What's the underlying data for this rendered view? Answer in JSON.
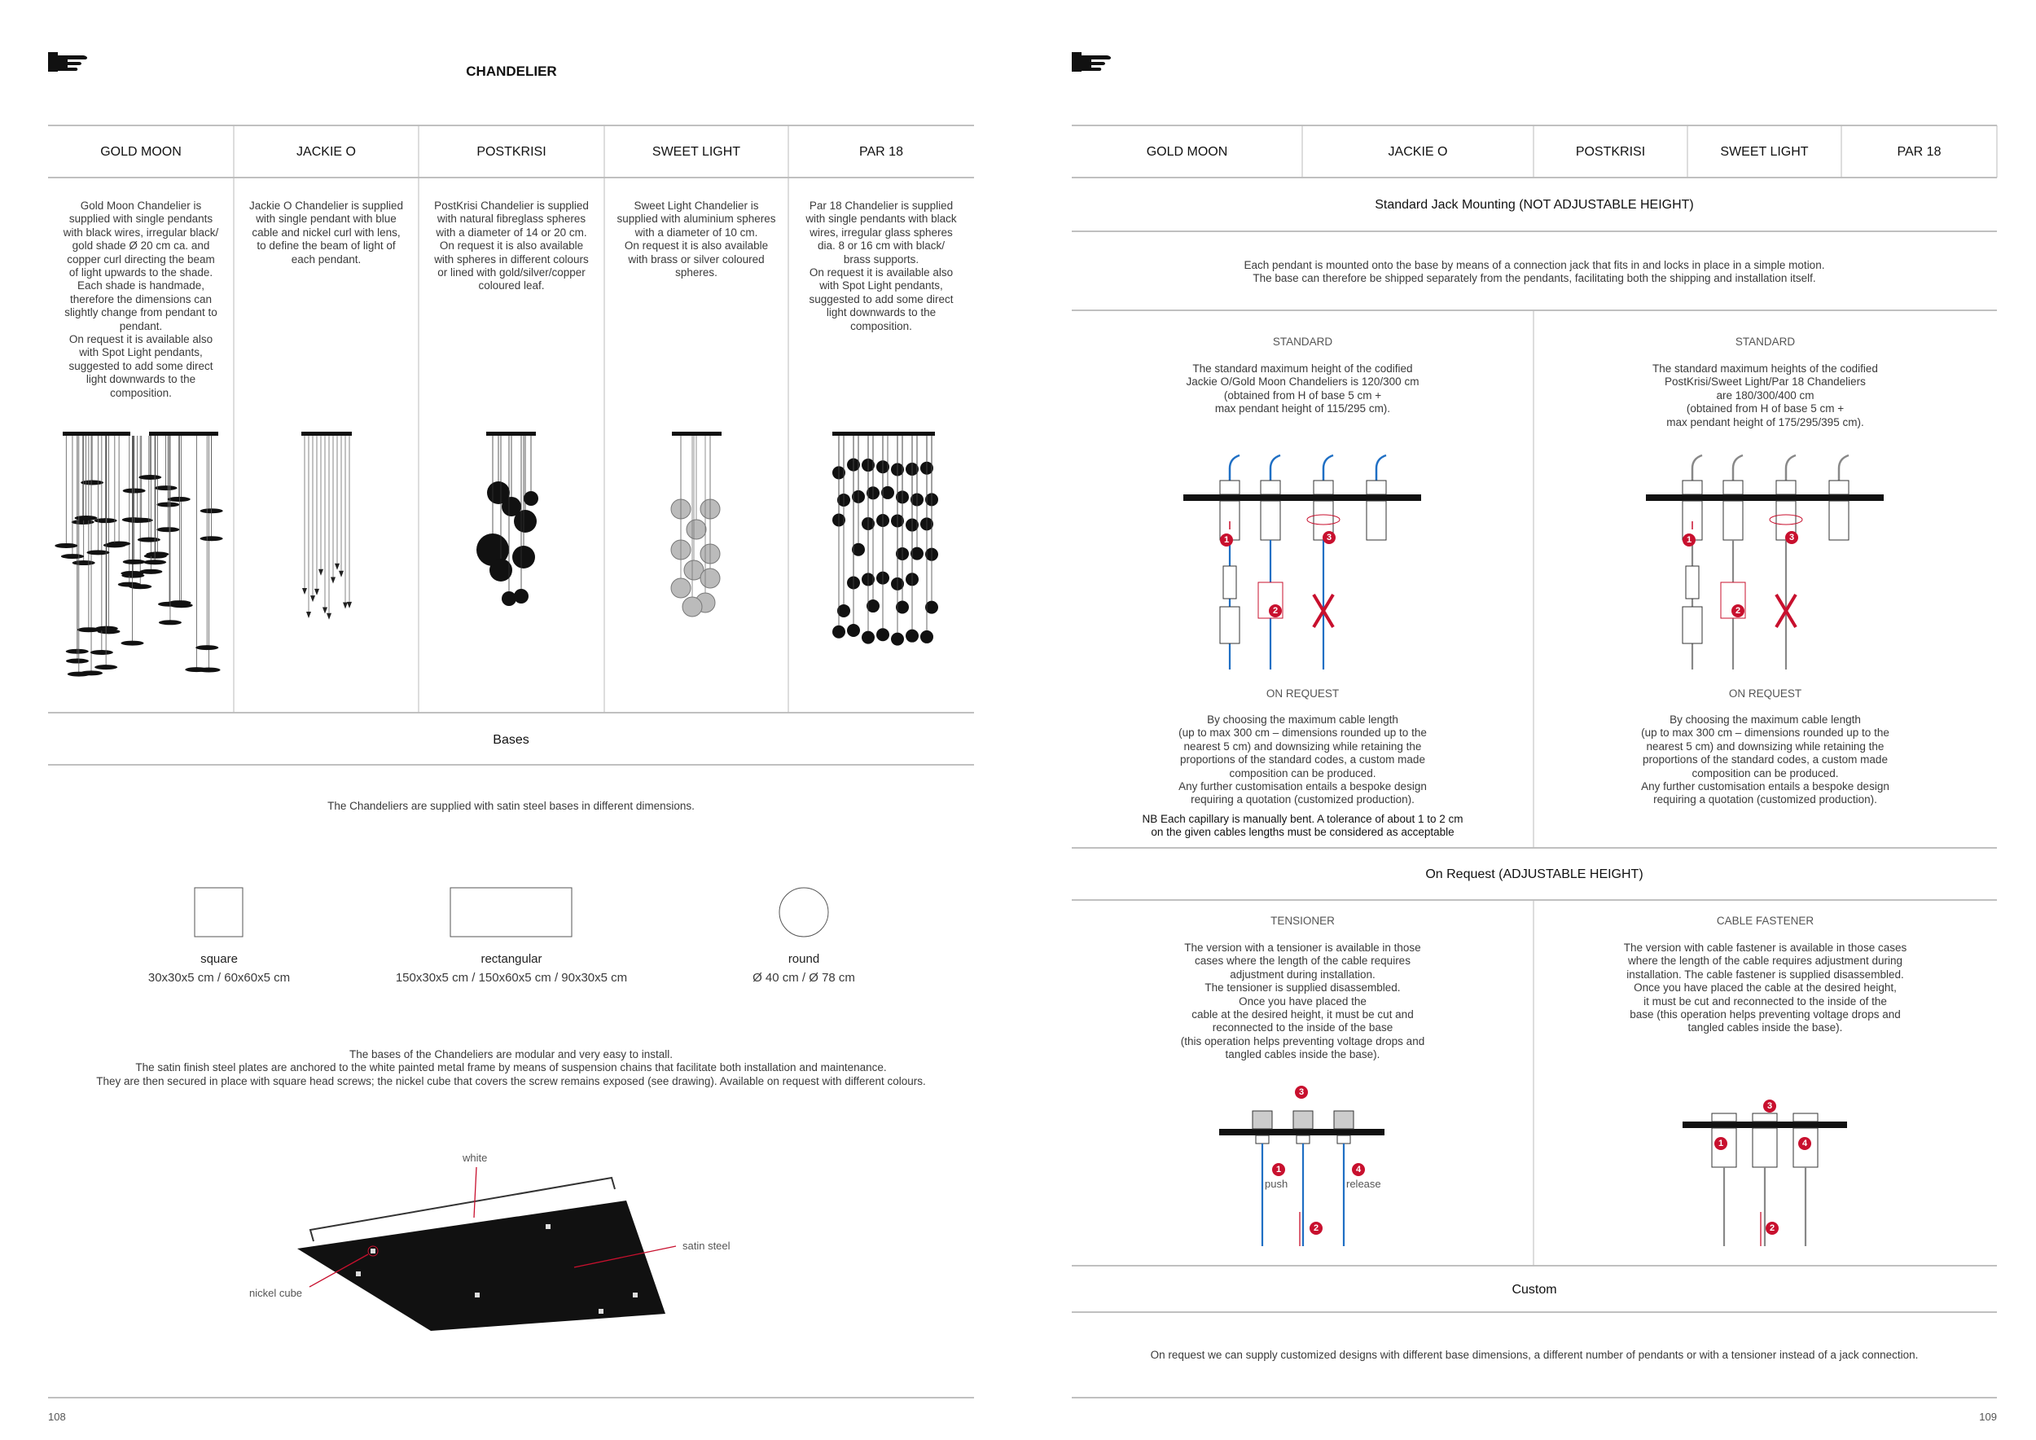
{
  "left": {
    "title": "CHANDELIER",
    "columns": [
      {
        "name": "GOLD MOON",
        "text": [
          "Gold Moon Chandelier is",
          "supplied with single pendants",
          "with black wires, irregular black/",
          "gold shade Ø 20 cm ca. and",
          "copper curl directing the beam",
          "of light upwards to the shade.",
          "Each shade is handmade,",
          "therefore the dimensions can",
          "slightly change from pendant to",
          "pendant.",
          "On request it is available also",
          "with Spot Light pendants,",
          "suggested to add some direct",
          "light downwards to the",
          "composition."
        ]
      },
      {
        "name": "JACKIE O",
        "text": [
          "Jackie O Chandelier is supplied",
          "with single pendant with blue",
          "cable and nickel curl with lens,",
          "to define the beam of light of",
          "each pendant."
        ]
      },
      {
        "name": "POSTKRISI",
        "text": [
          "PostKrisi Chandelier is supplied",
          "with natural fibreglass spheres",
          "with a diameter of 14 or 20 cm.",
          "On request it is also available",
          "with spheres in different colours",
          "or lined with gold/silver/copper",
          "coloured leaf."
        ]
      },
      {
        "name": "SWEET LIGHT",
        "text": [
          "Sweet Light Chandelier is",
          "supplied with aluminium spheres",
          "with a diameter of 10 cm.",
          "On request it is also available",
          "with brass or silver coloured",
          "spheres."
        ]
      },
      {
        "name": "PAR 18",
        "text": [
          "Par 18 Chandelier is supplied",
          "with single pendants with black",
          "wires, irregular glass spheres",
          "dia. 8 or 16  cm with black/",
          "brass supports.",
          "On request it is available also",
          "with Spot Light pendants,",
          "suggested to add some direct",
          "light downwards to the",
          "composition."
        ]
      }
    ],
    "bases": {
      "heading": "Bases",
      "intro": "The Chandeliers are supplied with satin steel bases in different dimensions.",
      "shapes": [
        {
          "name": "square",
          "sizes": "30x30x5 cm  /  60x60x5 cm"
        },
        {
          "name": "rectangular",
          "sizes": "150x30x5 cm  /  150x60x5 cm  /  90x30x5 cm"
        },
        {
          "name": "round",
          "sizes": "Ø 40 cm  /  Ø 78 cm"
        }
      ],
      "description": [
        "The bases of the Chandeliers are modular and very easy to install.",
        "The satin finish steel plates are anchored to the white painted metal frame by means of suspension chains that facilitate both installation and maintenance.",
        "They are then secured in place with square head screws; the nickel cube that covers the screw remains exposed (see drawing). Available on request with different colours."
      ],
      "drawing_labels": {
        "white": "white",
        "satin": "satin steel",
        "nickel": "nickel cube"
      }
    },
    "page_number": "108"
  },
  "right": {
    "columns": [
      "GOLD MOON",
      "JACKIE O",
      "POSTKRISI",
      "SWEET LIGHT",
      "PAR 18"
    ],
    "standard": {
      "heading": "Standard Jack Mounting (NOT ADJUSTABLE HEIGHT)",
      "intro": [
        "Each pendant is mounted onto the base by means of a connection jack that fits in and locks in place in a simple motion.",
        "The base can therefore be shipped separately from the pendants, facilitating both the shipping and installation itself."
      ],
      "panels": [
        {
          "label": "STANDARD",
          "text": [
            "The standard maximum height of the codified",
            "Jackie O/Gold Moon Chandeliers is 120/300 cm",
            "(obtained from H of base 5 cm +",
            "max pendant height of 115/295 cm)."
          ],
          "request_label": "ON REQUEST",
          "request_text": [
            "By choosing the maximum cable length",
            "(up to max 300 cm – dimensions rounded up to the",
            "nearest 5 cm) and downsizing while retaining the",
            "proportions of the standard codes, a custom made",
            "composition can be produced.",
            "Any further customisation entails a bespoke design",
            "requiring a quotation (customized production)."
          ],
          "note": [
            "NB Each capillary is manually bent. A tolerance of about 1 to 2 cm",
            "on the given cables lengths must be considered as acceptable"
          ],
          "steps": [
            "1",
            "2",
            "3"
          ]
        },
        {
          "label": "STANDARD",
          "text": [
            "The standard maximum heights of the codified",
            "PostKrisi/Sweet Light/Par 18 Chandeliers",
            "are 180/300/400 cm",
            "(obtained from H of base 5 cm +",
            "max pendant height of 175/295/395 cm)."
          ],
          "request_label": "ON REQUEST",
          "request_text": [
            "By choosing the maximum cable length",
            "(up to max 300 cm – dimensions rounded up to the",
            "nearest 5 cm) and downsizing while retaining the",
            "proportions of the standard codes, a custom made",
            "composition can be produced.",
            "Any further customisation entails a bespoke design",
            "requiring a quotation (customized production)."
          ],
          "steps": [
            "1",
            "2",
            "3"
          ]
        }
      ]
    },
    "adjustable": {
      "heading": "On Request (ADJUSTABLE HEIGHT)",
      "panels": [
        {
          "label": "TENSIONER",
          "text": [
            "The version with a tensioner is available in those",
            "cases where the length of the cable requires",
            "adjustment during installation.",
            "The tensioner is supplied disassembled.",
            "Once you have placed the",
            "cable at the desired height, it must be cut and",
            "reconnected to the inside of the base",
            "(this operation helps preventing voltage drops and",
            "tangled cables inside the base)."
          ],
          "steps": [
            "1",
            "2",
            "3",
            "4"
          ],
          "push": "push",
          "release": "release"
        },
        {
          "label": "CABLE FASTENER",
          "text": [
            "The version with cable fastener is available in those cases",
            "where the length of the cable requires adjustment during",
            "installation. The cable fastener is supplied disassembled.",
            "Once you have placed the cable at the desired height,",
            "it must be cut and reconnected to the inside of the",
            "base (this operation helps preventing voltage drops and",
            "tangled cables inside the base)."
          ],
          "steps": [
            "1",
            "2",
            "3",
            "4"
          ]
        }
      ]
    },
    "custom": {
      "heading": "Custom",
      "text": "On request we can supply customized designs with different base dimensions, a different number of pendants or with a tensioner instead of a jack connection."
    },
    "page_number": "109"
  }
}
